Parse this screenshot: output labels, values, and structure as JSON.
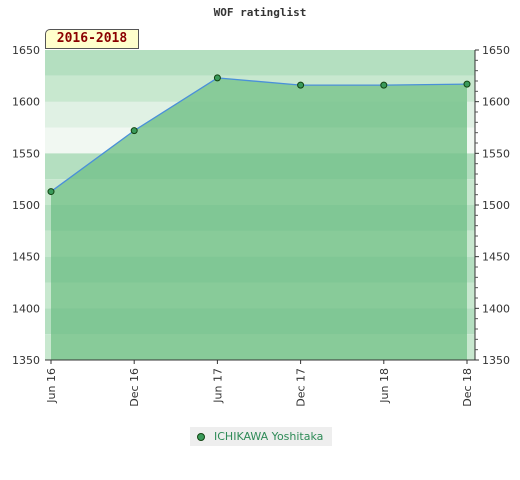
{
  "chart_data": {
    "type": "area",
    "title": "WOF ratinglist",
    "subtitle": "2016-2018",
    "x_labels": [
      "Jun 16",
      "Dec 16",
      "Jun 17",
      "Dec 17",
      "Jun 18",
      "Dec 18"
    ],
    "series": [
      {
        "name": "ICHIKAWA Yoshitaka",
        "x": [
          "Jun 16",
          "Dec 16",
          "Jun 17",
          "Dec 17",
          "Jun 18",
          "Dec 18"
        ],
        "values": [
          1513,
          1572,
          1623,
          1616,
          1616,
          1617
        ]
      }
    ],
    "ylim": [
      1350,
      1650
    ],
    "y_ticks": [
      1350,
      1400,
      1450,
      1500,
      1550,
      1600,
      1650
    ],
    "y_axis": "both",
    "grid": false,
    "legend_position": "bottom",
    "colors": {
      "line": "#4a90d9",
      "marker": "#3a9a5a",
      "area": "#7dc58f",
      "band_light": "#f1f8f2",
      "band_mid": "#d6eddb",
      "band_dark": "#79c291",
      "legend_text": "#2e8b57",
      "badge_bg": "#ffffcc",
      "badge_text": "#8b0000"
    }
  }
}
